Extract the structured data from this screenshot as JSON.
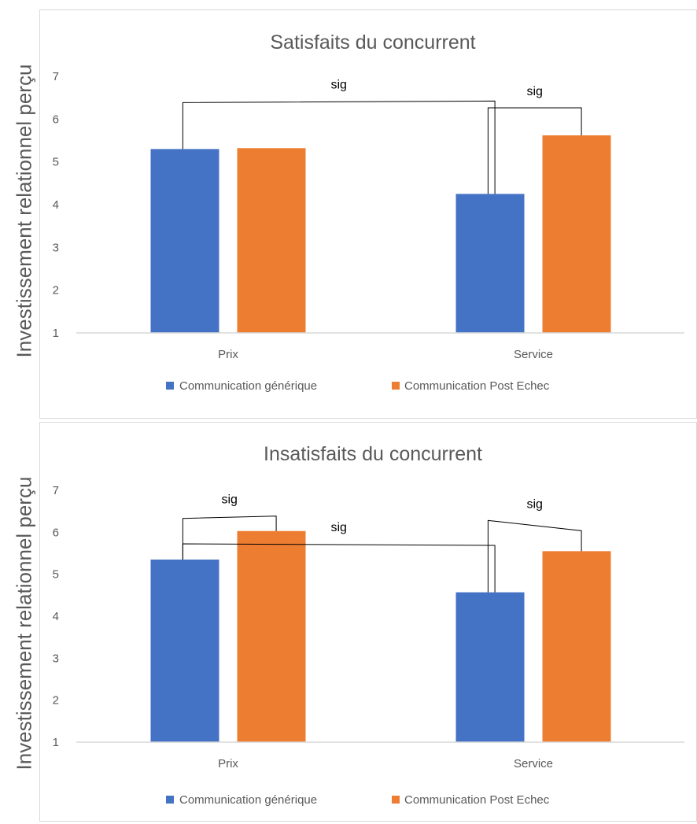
{
  "colors": {
    "generic": "#4472C4",
    "post_echec": "#ED7D31",
    "axis": "#D9D9D9",
    "text": "#595959",
    "bracket": "#000000"
  },
  "chart_data": [
    {
      "type": "bar",
      "title": "Satisfaits du concurrent",
      "xlabel": "",
      "ylabel": "Investissement relationnel perçu",
      "ylim": [
        1,
        7
      ],
      "yticks": [
        "1",
        "2",
        "3",
        "4",
        "5",
        "6",
        "7"
      ],
      "grid": false,
      "legend_position": "bottom",
      "categories": [
        "Prix",
        "Service"
      ],
      "series": [
        {
          "name": "Communication générique",
          "values": [
            5.3,
            4.25
          ]
        },
        {
          "name": "Communication Post Echec",
          "values": [
            5.32,
            5.62
          ]
        }
      ],
      "annotations": [
        {
          "label": "sig",
          "from": {
            "category": 0,
            "series": 0
          },
          "to": {
            "category": 1,
            "series": 0
          }
        },
        {
          "label": "sig",
          "from": {
            "category": 1,
            "series": 0
          },
          "to": {
            "category": 1,
            "series": 1
          }
        }
      ]
    },
    {
      "type": "bar",
      "title": "Insatisfaits du concurrent",
      "xlabel": "",
      "ylabel": "Investissement relationnel perçu",
      "ylim": [
        1,
        7
      ],
      "yticks": [
        "1",
        "2",
        "3",
        "4",
        "5",
        "6",
        "7"
      ],
      "grid": false,
      "legend_position": "bottom",
      "categories": [
        "Prix",
        "Service"
      ],
      "series": [
        {
          "name": "Communication générique",
          "values": [
            5.35,
            4.57
          ]
        },
        {
          "name": "Communication Post Echec",
          "values": [
            6.03,
            5.55
          ]
        }
      ],
      "annotations": [
        {
          "label": "sig",
          "from": {
            "category": 0,
            "series": 0
          },
          "to": {
            "category": 0,
            "series": 1
          }
        },
        {
          "label": "sig",
          "from": {
            "category": 0,
            "series": 0
          },
          "to": {
            "category": 1,
            "series": 0
          }
        },
        {
          "label": "sig",
          "from": {
            "category": 1,
            "series": 0
          },
          "to": {
            "category": 1,
            "series": 1
          }
        }
      ]
    }
  ]
}
